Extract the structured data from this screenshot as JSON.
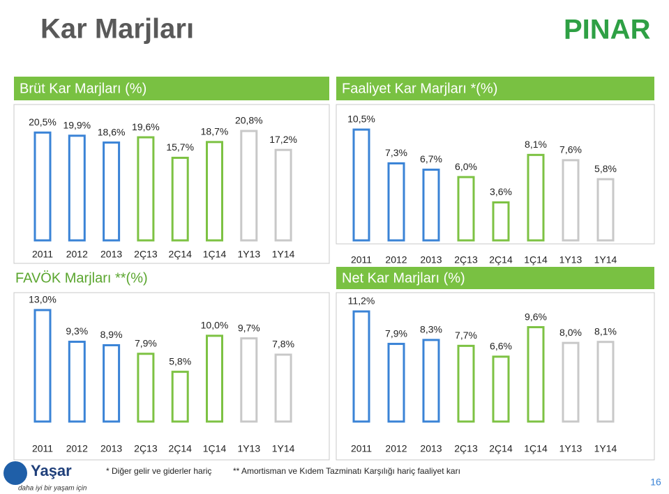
{
  "slide": {
    "title": "Kar Marjları",
    "page_number": "16",
    "footnotes": [
      "* Diğer gelir ve giderler hariç",
      "** Amortisman ve Kıdem Tazminatı Karşılığı hariç faaliyet karı"
    ],
    "logos": {
      "pinar": "PINAR",
      "yasar": "Yaşar",
      "yasar_tagline": "daha iyi bir yaşam için"
    }
  },
  "chart_data": [
    {
      "type": "bar",
      "title": "Brüt Kar Marjları (%)",
      "categories": [
        "2011",
        "2012",
        "2013",
        "2Ç13",
        "2Ç14",
        "1Ç14",
        "1Y13",
        "1Y14"
      ],
      "values": [
        20.5,
        19.9,
        18.6,
        19.6,
        15.7,
        18.7,
        20.8,
        17.2
      ],
      "value_labels": [
        "20,5%",
        "19,9%",
        "18,6%",
        "19,6%",
        "15,7%",
        "18,7%",
        "20,8%",
        "17,2%"
      ],
      "colors": [
        "#3a83d6",
        "#3a83d6",
        "#3a83d6",
        "#7dc243",
        "#7dc243",
        "#7dc243",
        "#c8c8c8",
        "#c8c8c8"
      ]
    },
    {
      "type": "bar",
      "title": "Faaliyet Kar Marjları *(%)",
      "categories": [
        "2011",
        "2012",
        "2013",
        "2Ç13",
        "2Ç14",
        "1Ç14",
        "1Y13",
        "1Y14"
      ],
      "values": [
        10.5,
        7.3,
        6.7,
        6.0,
        3.6,
        8.1,
        7.6,
        5.8
      ],
      "value_labels": [
        "10,5%",
        "7,3%",
        "6,7%",
        "6,0%",
        "3,6%",
        "8,1%",
        "7,6%",
        "5,8%"
      ],
      "colors": [
        "#3a83d6",
        "#3a83d6",
        "#3a83d6",
        "#7dc243",
        "#7dc243",
        "#7dc243",
        "#c8c8c8",
        "#c8c8c8"
      ]
    },
    {
      "type": "bar",
      "title": "FAVÖK Marjları **(%)",
      "categories": [
        "2011",
        "2012",
        "2013",
        "2Ç13",
        "2Ç14",
        "1Ç14",
        "1Y13",
        "1Y14"
      ],
      "values": [
        13.0,
        9.3,
        8.9,
        7.9,
        5.8,
        10.0,
        9.7,
        7.8
      ],
      "value_labels": [
        "13,0%",
        "9,3%",
        "8,9%",
        "7,9%",
        "5,8%",
        "10,0%",
        "9,7%",
        "7,8%"
      ],
      "colors": [
        "#3a83d6",
        "#3a83d6",
        "#3a83d6",
        "#7dc243",
        "#7dc243",
        "#7dc243",
        "#c8c8c8",
        "#c8c8c8"
      ]
    },
    {
      "type": "bar",
      "title": "Net Kar Marjları (%)",
      "categories": [
        "2011",
        "2012",
        "2013",
        "2Ç13",
        "2Ç14",
        "1Ç14",
        "1Y13",
        "1Y14"
      ],
      "values": [
        11.2,
        7.9,
        8.3,
        7.7,
        6.6,
        9.6,
        8.0,
        8.1
      ],
      "value_labels": [
        "11,2%",
        "7,9%",
        "8,3%",
        "7,7%",
        "6,6%",
        "9,6%",
        "8,0%",
        "8,1%"
      ],
      "colors": [
        "#3a83d6",
        "#3a83d6",
        "#3a83d6",
        "#7dc243",
        "#7dc243",
        "#7dc243",
        "#c8c8c8",
        "#c8c8c8"
      ]
    }
  ]
}
